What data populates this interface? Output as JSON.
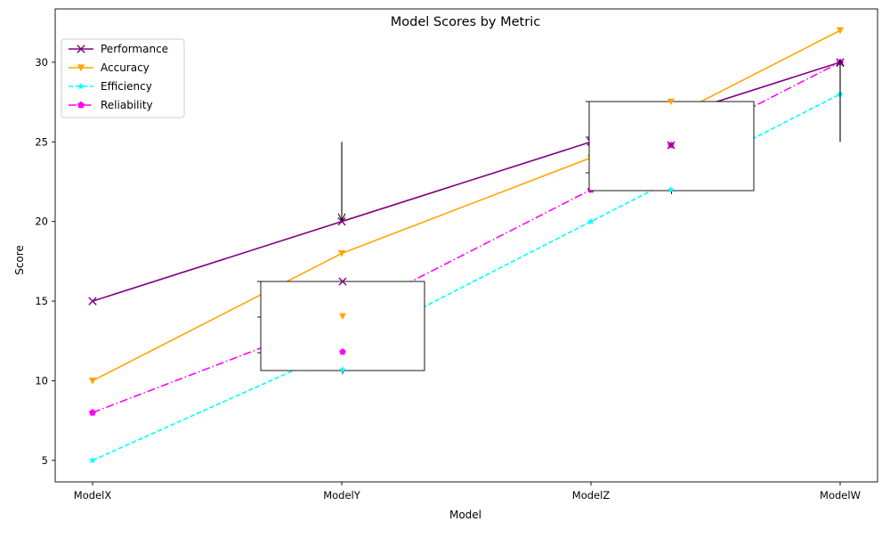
{
  "chart_data": {
    "type": "line",
    "title": "Model Scores by Metric",
    "xlabel": "Model",
    "ylabel": "Score",
    "categories": [
      "ModelX",
      "ModelY",
      "ModelZ",
      "ModelW"
    ],
    "ylim": [
      3.65,
      33.35
    ],
    "yticks": [
      5,
      10,
      15,
      20,
      25,
      30
    ],
    "grid": false,
    "legend_position": "upper left",
    "series": [
      {
        "name": "Performance",
        "values": [
          15,
          20,
          25,
          30
        ],
        "color": "#800080",
        "linestyle": "solid",
        "marker": "x"
      },
      {
        "name": "Accuracy",
        "values": [
          10,
          18,
          24,
          32
        ],
        "color": "#FFA500",
        "linestyle": "solid",
        "marker": "triangle-down"
      },
      {
        "name": "Efficiency",
        "values": [
          5,
          12,
          20,
          28
        ],
        "color": "#00FFFF",
        "linestyle": "dashed",
        "marker": "star"
      },
      {
        "name": "Reliability",
        "values": [
          8,
          14,
          22,
          30
        ],
        "color": "#FF00FF",
        "linestyle": "dashdot",
        "marker": "pentagon"
      }
    ],
    "annotations": [
      {
        "text": "",
        "target": {
          "category": "ModelY",
          "value": 20
        },
        "from_value": 25
      },
      {
        "text": "",
        "target": {
          "category": "ModelW",
          "value": 30
        },
        "from_value": 25
      }
    ]
  }
}
